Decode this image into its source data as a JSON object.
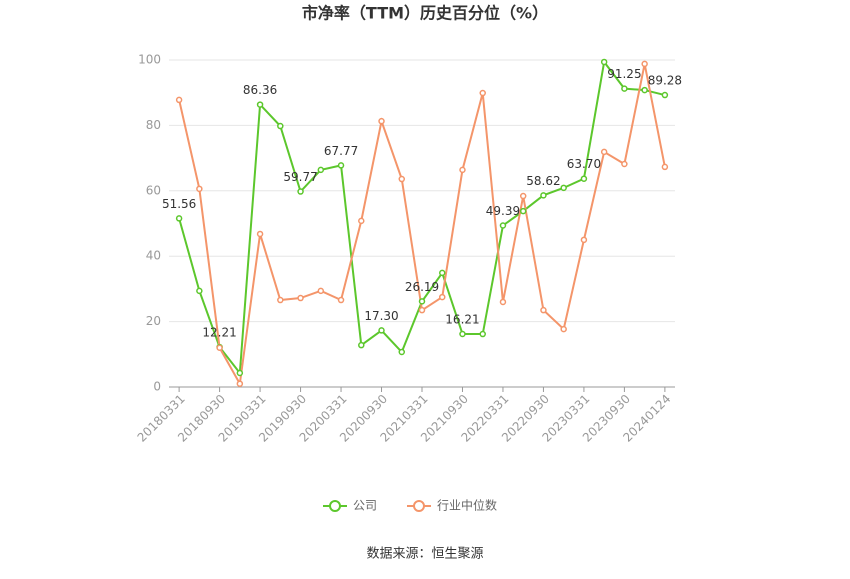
{
  "chart_data": {
    "type": "line",
    "title": "市净率（TTM）历史百分位（%）",
    "source": "数据来源：恒生聚源",
    "categories": [
      "20180331",
      null,
      "20180930",
      null,
      "20190331",
      null,
      "20190930",
      null,
      "20200331",
      null,
      "20200930",
      null,
      "20210331",
      null,
      "20210930",
      null,
      "20220331",
      null,
      "20220930",
      null,
      "20230331",
      null,
      "20230930",
      null,
      "20240124"
    ],
    "ylim": [
      0,
      100
    ],
    "yticks": [
      0,
      20,
      40,
      60,
      80,
      100
    ],
    "grid": true,
    "legend": "bottom",
    "series": [
      {
        "name": "公司",
        "color": "#5cc72c",
        "values": [
          51.56,
          29.4,
          12.21,
          4.3,
          86.36,
          79.8,
          59.77,
          66.4,
          67.77,
          12.8,
          17.3,
          10.7,
          26.19,
          34.9,
          16.21,
          16.2,
          49.39,
          53.8,
          58.62,
          60.9,
          63.7,
          99.4,
          91.25,
          90.8,
          89.28
        ],
        "value_labels": [
          "51.56",
          null,
          "12.21",
          null,
          "86.36",
          null,
          "59.77",
          null,
          "67.77",
          null,
          "17.30",
          null,
          "26.19",
          null,
          "16.21",
          null,
          "49.39",
          null,
          "58.62",
          null,
          "63.70",
          null,
          "91.25",
          null,
          "89.28"
        ]
      },
      {
        "name": "行业中位数",
        "color": "#f4956a",
        "values": [
          87.8,
          60.6,
          12.0,
          1.0,
          46.8,
          26.6,
          27.2,
          29.4,
          26.6,
          50.8,
          81.3,
          63.6,
          23.5,
          27.5,
          66.4,
          89.9,
          26.0,
          58.4,
          23.5,
          17.7,
          45.0,
          71.9,
          68.2,
          98.8,
          67.3
        ]
      }
    ]
  }
}
